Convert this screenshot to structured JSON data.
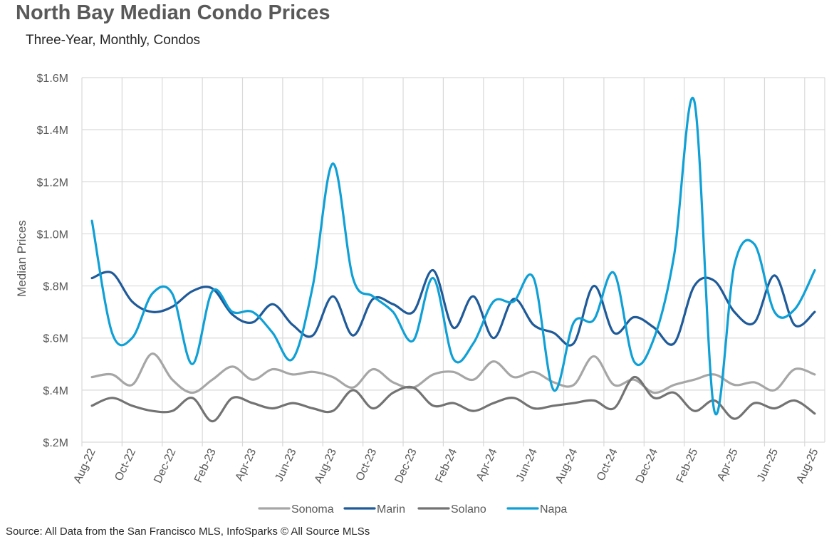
{
  "header": {
    "title": "North Bay Median Condo Prices",
    "subtitle": "Three-Year, Monthly, Condos"
  },
  "footer": {
    "source": "Source: All Data from the San Francisco MLS, InfoSparks © All Source MLSs"
  },
  "chart_data": {
    "type": "line",
    "title": "North Bay Median Condo Prices",
    "subtitle": "Three-Year, Monthly, Condos",
    "xlabel": "",
    "ylabel": "Median Prices",
    "unit": "USD millions",
    "ylim": [
      0.2,
      1.6
    ],
    "yticks": [
      0.2,
      0.4,
      0.6,
      0.8,
      1.0,
      1.2,
      1.4,
      1.6
    ],
    "ytick_labels": [
      "$.2M",
      "$.4M",
      "$.6M",
      "$.8M",
      "$1.0M",
      "$1.2M",
      "$1.4M",
      "$1.6M"
    ],
    "grid": true,
    "smooth": true,
    "legend_position": "bottom",
    "x": [
      "Aug-22",
      "Sep-22",
      "Oct-22",
      "Nov-22",
      "Dec-22",
      "Jan-23",
      "Feb-23",
      "Mar-23",
      "Apr-23",
      "May-23",
      "Jun-23",
      "Jul-23",
      "Aug-23",
      "Sep-23",
      "Oct-23",
      "Nov-23",
      "Dec-23",
      "Jan-24",
      "Feb-24",
      "Mar-24",
      "Apr-24",
      "May-24",
      "Jun-24",
      "Jul-24",
      "Aug-24",
      "Sep-24",
      "Oct-24",
      "Nov-24",
      "Dec-24",
      "Jan-25",
      "Feb-25",
      "Mar-25",
      "Apr-25",
      "May-25",
      "Jun-25",
      "Jul-25",
      "Aug-25"
    ],
    "xtick_labels": [
      "Aug-22",
      "Oct-22",
      "Dec-22",
      "Feb-23",
      "Apr-23",
      "Jun-23",
      "Aug-23",
      "Oct-23",
      "Dec-23",
      "Feb-24",
      "Apr-24",
      "Jun-24",
      "Aug-24",
      "Oct-24",
      "Dec-24",
      "Feb-25",
      "Apr-25",
      "Jun-25",
      "Aug-25"
    ],
    "series": [
      {
        "name": "Sonoma",
        "color": "#a6a6a6",
        "values": [
          0.45,
          0.46,
          0.42,
          0.54,
          0.44,
          0.39,
          0.44,
          0.49,
          0.44,
          0.48,
          0.46,
          0.47,
          0.45,
          0.41,
          0.48,
          0.43,
          0.41,
          0.46,
          0.47,
          0.44,
          0.51,
          0.45,
          0.47,
          0.43,
          0.42,
          0.53,
          0.42,
          0.44,
          0.39,
          0.42,
          0.44,
          0.46,
          0.42,
          0.43,
          0.4,
          0.48,
          0.46
        ]
      },
      {
        "name": "Marin",
        "color": "#1f5a99",
        "values": [
          0.83,
          0.85,
          0.74,
          0.7,
          0.72,
          0.78,
          0.79,
          0.69,
          0.66,
          0.73,
          0.65,
          0.61,
          0.76,
          0.61,
          0.75,
          0.73,
          0.7,
          0.86,
          0.64,
          0.76,
          0.6,
          0.75,
          0.65,
          0.62,
          0.58,
          0.8,
          0.62,
          0.68,
          0.64,
          0.58,
          0.8,
          0.82,
          0.7,
          0.66,
          0.84,
          0.65,
          0.7
        ]
      },
      {
        "name": "Solano",
        "color": "#737373",
        "values": [
          0.34,
          0.37,
          0.34,
          0.32,
          0.32,
          0.37,
          0.28,
          0.37,
          0.35,
          0.33,
          0.35,
          0.33,
          0.32,
          0.4,
          0.33,
          0.39,
          0.41,
          0.34,
          0.35,
          0.32,
          0.35,
          0.37,
          0.33,
          0.34,
          0.35,
          0.36,
          0.33,
          0.45,
          0.37,
          0.39,
          0.32,
          0.36,
          0.29,
          0.35,
          0.33,
          0.36,
          0.31
        ]
      },
      {
        "name": "Napa",
        "color": "#0fa0d6",
        "values": [
          1.05,
          0.62,
          0.6,
          0.77,
          0.77,
          0.5,
          0.78,
          0.7,
          0.7,
          0.62,
          0.52,
          0.8,
          1.27,
          0.83,
          0.76,
          0.7,
          0.59,
          0.83,
          0.52,
          0.58,
          0.74,
          0.74,
          0.83,
          0.4,
          0.66,
          0.67,
          0.85,
          0.51,
          0.6,
          0.92,
          1.51,
          0.32,
          0.88,
          0.96,
          0.7,
          0.71,
          0.86
        ]
      }
    ]
  }
}
